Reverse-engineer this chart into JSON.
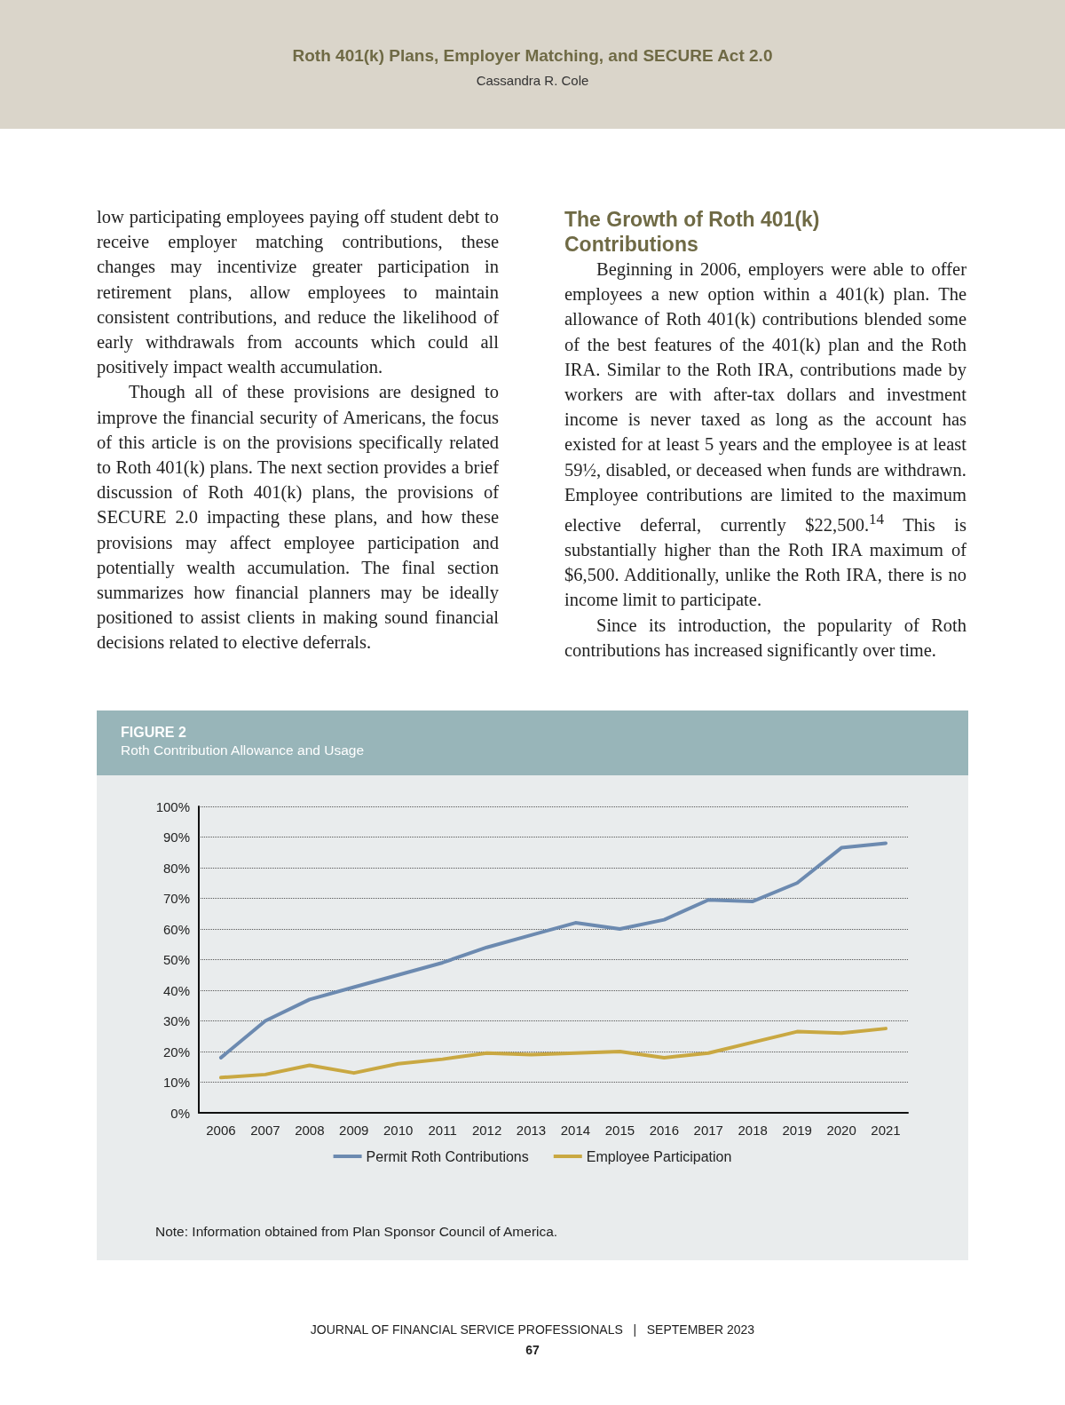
{
  "chart_data": {
    "type": "line",
    "title": "FIGURE 2",
    "subtitle": "Roth Contribution Allowance and Usage",
    "categories": [
      "2006",
      "2007",
      "2008",
      "2009",
      "2010",
      "2011",
      "2012",
      "2013",
      "2014",
      "2015",
      "2016",
      "2017",
      "2018",
      "2019",
      "2020",
      "2021"
    ],
    "series": [
      {
        "name": "Permit Roth Contributions",
        "color": "#6c8ab0",
        "values": [
          18,
          30,
          37,
          41,
          45,
          49,
          54,
          58,
          62,
          60,
          63,
          69.5,
          69,
          75,
          86.5,
          88
        ]
      },
      {
        "name": "Employee Participation",
        "color": "#c9a842",
        "values": [
          11.5,
          12.5,
          15.5,
          13,
          16,
          17.5,
          19.5,
          19,
          19.5,
          20,
          18,
          19.5,
          23,
          26.5,
          26,
          27.5
        ]
      }
    ],
    "ylim": [
      0,
      100
    ],
    "yticks": [
      {
        "value": 0,
        "label": "0%"
      },
      {
        "value": 10,
        "label": "10%"
      },
      {
        "value": 20,
        "label": "20%"
      },
      {
        "value": 30,
        "label": "30%"
      },
      {
        "value": 40,
        "label": "40%"
      },
      {
        "value": 50,
        "label": "50%"
      },
      {
        "value": 60,
        "label": "60%"
      },
      {
        "value": 70,
        "label": "70%"
      },
      {
        "value": 80,
        "label": "80%"
      },
      {
        "value": 90,
        "label": "90%"
      },
      {
        "value": 100,
        "label": "100%"
      }
    ],
    "grid": "y",
    "legend": "bottom",
    "marker": "none",
    "line_style": "solid",
    "annotations": [
      "Roth 401(k) Plans, Employer Matching, and SECURE Act 2.0",
      "Cassandra R. Cole",
      "low participating employees paying off student debt to receive employer matching contributions, these changes may incentivize greater participation in retirement plans, allow employees to maintain consistent contributions, and reduce the likelihood of early withdrawals from accounts which could all positively impact wealth accumulation.\nThough all of these provisions are designed to improve the financial security of Americans, the focus of this article is on the provisions specifically related to Roth 401(k) plans. The next section provides a brief discussion of Roth 401(k) plans, the provisions of SECURE 2.0 impacting these plans, and how these provisions may affect employee participation and potentially wealth accumulation. The final section summarizes how financial planners may be ideally positioned to assist clients in making sound financial decisions related to elective deferrals.",
      "The Growth of Roth 401(k) Contributions",
      "Beginning in 2006, employers were able to offer employees a new option within a 401(k) plan. The allowance of Roth 401(k) contributions blended some of the best features of the 401(k) plan and the Roth IRA. Similar to the Roth IRA, contributions made by workers are with after-tax dollars and investment income is never taxed as long as the account has existed for at least 5 years and the employee is at least 59½, disabled, or deceased when funds are withdrawn. Employee contributions are limited to the maximum elective deferral, currently $22,500.$^{14}$ This is substantially higher than the Roth IRA maximum of $6,500. Additionally, unlike the Roth IRA, there is no income limit to participate.\nSince its introduction, the popularity of Roth contributions has increased significantly over time.",
      "Note: Information obtained from Plan Sponsor Council of America.",
      "JOURNAL OF FINANCIAL SERVICE PROFESSIONALS   |   SEPTEMBER 2023",
      "67"
    ]
  }
}
